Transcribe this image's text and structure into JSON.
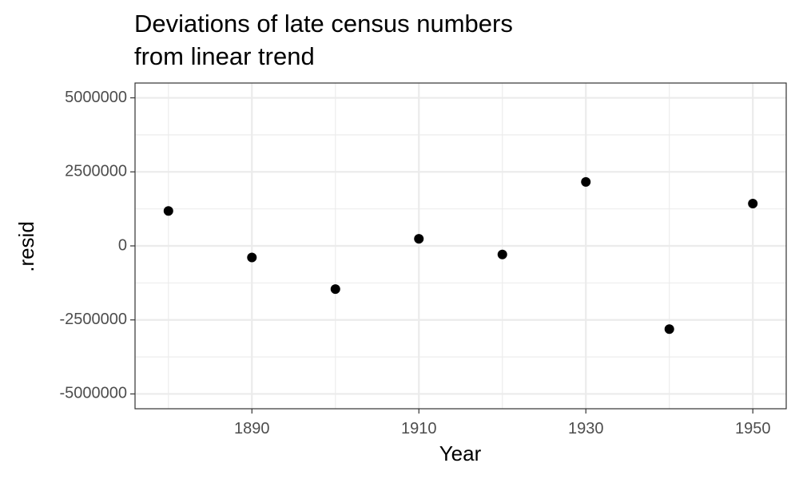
{
  "chart_data": {
    "type": "scatter",
    "title": [
      "Deviations of late census numbers",
      "from linear trend"
    ],
    "xlabel": "Year",
    "ylabel": ".resid",
    "xlim": [
      1876,
      1954
    ],
    "ylim": [
      -5500000,
      5500000
    ],
    "x_ticks": [
      1890,
      1910,
      1930,
      1950
    ],
    "x_ticks_minor": [
      1880,
      1900,
      1920,
      1940
    ],
    "y_ticks": [
      5000000,
      2500000,
      0,
      -2500000,
      -5000000
    ],
    "y_tick_labels": [
      "5000000",
      "2500000",
      "0",
      "-2500000",
      "-5000000"
    ],
    "y_ticks_minor": [
      3750000,
      1250000,
      -1250000,
      -3750000
    ],
    "grid": true,
    "colors": {
      "point": "#000000",
      "grid": "#ebebeb",
      "panel_border": "#333333"
    },
    "points": [
      {
        "x": 1880,
        "y": 1180000
      },
      {
        "x": 1890,
        "y": -390000
      },
      {
        "x": 1900,
        "y": -1460000
      },
      {
        "x": 1910,
        "y": 240000
      },
      {
        "x": 1920,
        "y": -290000
      },
      {
        "x": 1930,
        "y": 2160000
      },
      {
        "x": 1940,
        "y": -2810000
      },
      {
        "x": 1950,
        "y": 1430000
      }
    ]
  }
}
